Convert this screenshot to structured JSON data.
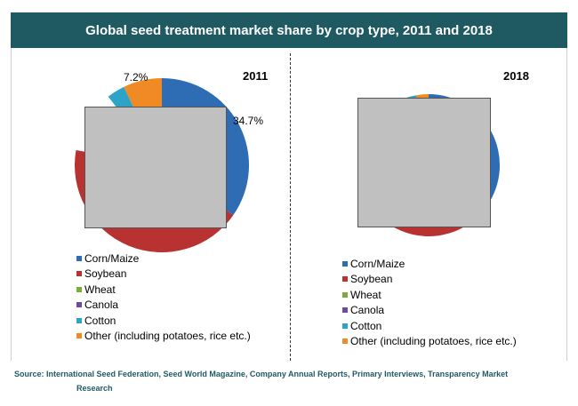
{
  "title": "Global seed treatment market share by crop type, 2011 and 2018",
  "source_line1": "Source: International Seed Federation, Seed World Magazine, Company Annual Reports, Primary Interviews, Transparency Market",
  "source_line2": "Research",
  "chart_data": [
    {
      "type": "pie",
      "title": "2011",
      "categories": [
        "Corn/Maize",
        "Soybean",
        "Wheat",
        "Canola",
        "Cotton",
        "Other (including potatoes, rice etc.)"
      ],
      "colors": [
        "#2e6db4",
        "#b83232",
        "#7dab3c",
        "#6e4a9e",
        "#2ea3c8",
        "#f08a24"
      ],
      "visible_slices": [
        {
          "category": "Corn/Maize",
          "start_deg": 0,
          "end_deg": 124.9,
          "label": "34.7%"
        },
        {
          "category": "Soybean",
          "start_deg": 124.9,
          "end_deg": 280
        },
        {
          "category": "Cotton",
          "start_deg": 322,
          "end_deg": 334.1
        },
        {
          "category": "Other (including potatoes, rice etc.)",
          "start_deg": 334.1,
          "end_deg": 360,
          "label": "7.2%"
        }
      ],
      "labels": {
        "corn": "34.7%",
        "other": "7.2%"
      }
    },
    {
      "type": "pie",
      "title": "2018",
      "categories": [
        "Corn/Maize",
        "Soybean",
        "Wheat",
        "Canola",
        "Cotton",
        "Other (including potatoes, rice etc.)"
      ],
      "colors": [
        "#2e6db4",
        "#b83232",
        "#7dab3c",
        "#6e4a9e",
        "#2ea3c8",
        "#f08a24"
      ],
      "visible_slices": [
        {
          "category": "Corn/Maize",
          "start_deg": 0,
          "end_deg": 125
        },
        {
          "category": "Soybean",
          "start_deg": 125,
          "end_deg": 280
        },
        {
          "category": "Cotton",
          "start_deg": 322,
          "end_deg": 350
        },
        {
          "category": "Other (including potatoes, rice etc.)",
          "start_deg": 350,
          "end_deg": 360
        }
      ]
    }
  ]
}
